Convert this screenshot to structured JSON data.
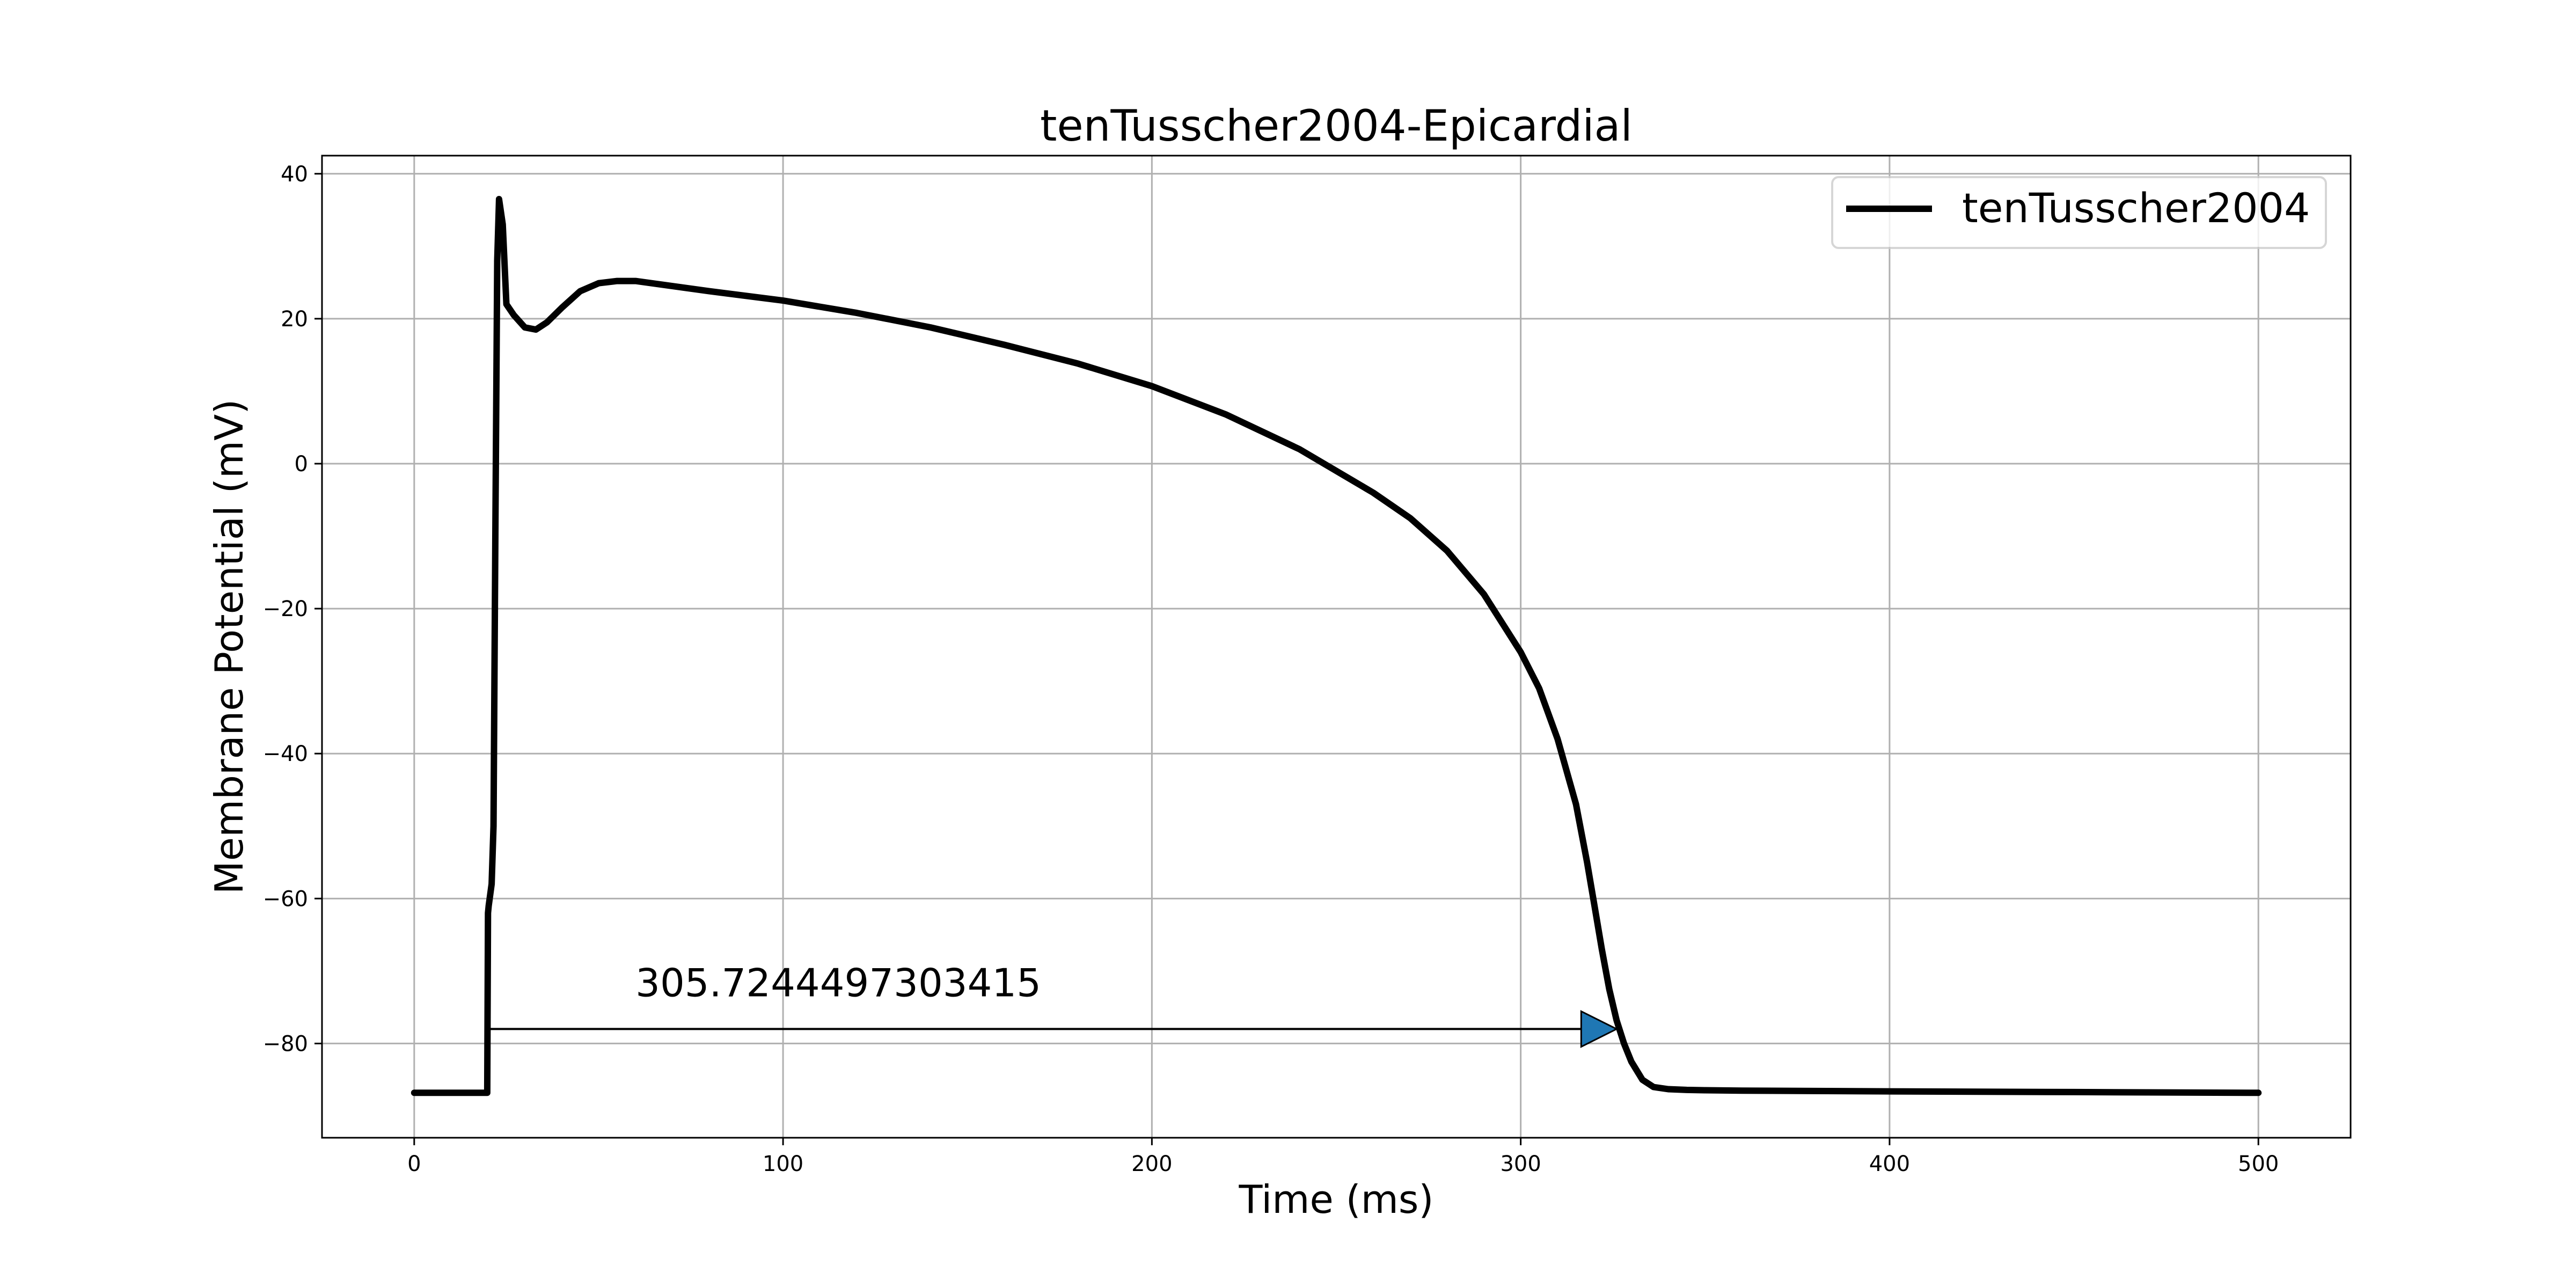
{
  "chart_data": {
    "type": "line",
    "title": "tenTusscher2004-Epicardial",
    "xlabel": "Time (ms)",
    "ylabel": "Membrane Potential (mV)",
    "xlim": [
      -25,
      525
    ],
    "ylim": [
      -93,
      42.5
    ],
    "xticks": [
      0,
      100,
      200,
      300,
      400,
      500
    ],
    "yticks": [
      -80,
      -60,
      -40,
      -20,
      0,
      20,
      40
    ],
    "grid": true,
    "legend": {
      "placement": "top-right"
    },
    "series": [
      {
        "name": "tenTusscher2004",
        "color": "#000000",
        "x": [
          0,
          10,
          19.8,
          20,
          20.2,
          21,
          21.5,
          22,
          22.5,
          23,
          24,
          25,
          27,
          30,
          33,
          36,
          40,
          45,
          50,
          55,
          60,
          70,
          80,
          100,
          120,
          140,
          160,
          180,
          200,
          220,
          240,
          260,
          270,
          280,
          290,
          300,
          305,
          310,
          315,
          318,
          320,
          322,
          324,
          326,
          328,
          330,
          333,
          336,
          340,
          345,
          350,
          360,
          400,
          450,
          500
        ],
        "y": [
          -86.8,
          -86.8,
          -86.8,
          -62,
          -61,
          -58,
          -50,
          -10,
          28,
          36.5,
          33,
          22,
          20.5,
          18.8,
          18.5,
          19.5,
          21.5,
          23.8,
          24.9,
          25.2,
          25.2,
          24.5,
          23.8,
          22.5,
          20.8,
          18.8,
          16.4,
          13.8,
          10.7,
          6.8,
          2,
          -4,
          -7.5,
          -12,
          -18,
          -26,
          -31,
          -38,
          -47,
          -55,
          -61,
          -67,
          -72.5,
          -76.8,
          -80,
          -82.5,
          -85,
          -86,
          -86.3,
          -86.4,
          -86.45,
          -86.5,
          -86.6,
          -86.7,
          -86.8
        ]
      }
    ],
    "annotations": [
      {
        "text": "305.7244497303415",
        "text_x": 60,
        "text_y": -73.5,
        "arrow_from": [
          20,
          -78
        ],
        "arrow_to": [
          326,
          -78
        ],
        "arrow_color": "#1f77b4"
      }
    ]
  }
}
